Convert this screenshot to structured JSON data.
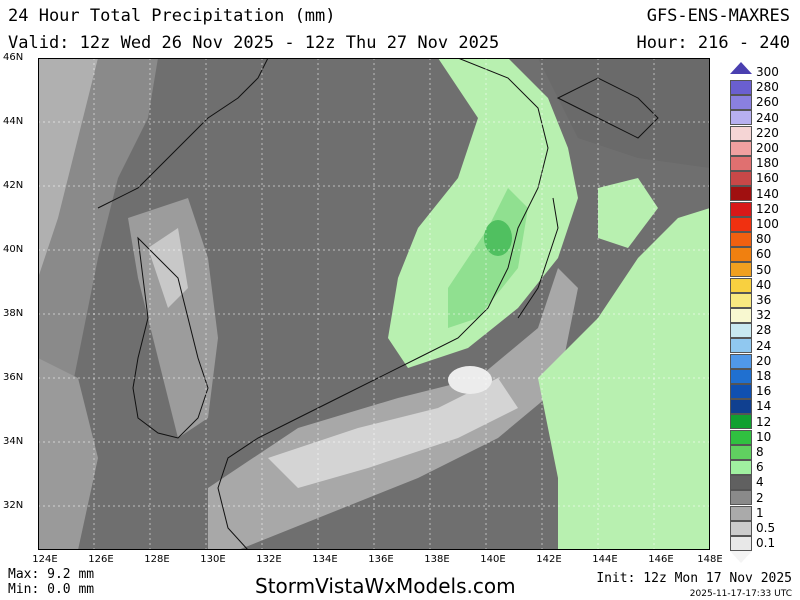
{
  "header": {
    "title": "24 Hour Total Precipitation (mm)",
    "valid": "Valid: 12z Wed 26 Nov 2025 - 12z Thu 27 Nov 2025",
    "model": "GFS-ENS-MAXRES",
    "hour": "Hour: 216 - 240"
  },
  "axes": {
    "lat_labels": [
      "46N",
      "44N",
      "42N",
      "40N",
      "38N",
      "36N",
      "34N",
      "32N"
    ],
    "lon_labels": [
      "124E",
      "126E",
      "128E",
      "130E",
      "132E",
      "134E",
      "136E",
      "138E",
      "140E",
      "142E",
      "144E",
      "146E",
      "148E"
    ]
  },
  "legend": {
    "labels": [
      "300",
      "280",
      "260",
      "240",
      "220",
      "200",
      "180",
      "160",
      "140",
      "120",
      "100",
      "80",
      "60",
      "50",
      "40",
      "36",
      "32",
      "28",
      "24",
      "20",
      "18",
      "16",
      "14",
      "12",
      "10",
      "8",
      "6",
      "4",
      "2",
      "1",
      "0.5",
      "0.1"
    ],
    "colors": [
      "#4a3fb0",
      "#6a5fd0",
      "#8a80e0",
      "#b7b0f0",
      "#f5d5d5",
      "#f0a0a0",
      "#e07070",
      "#c84848",
      "#a01010",
      "#d81818",
      "#f03010",
      "#f06010",
      "#f08010",
      "#f0a020",
      "#f8d040",
      "#f8e880",
      "#f8f8d0",
      "#c8e8f0",
      "#90c8f0",
      "#5098e8",
      "#2070d0",
      "#1050b0",
      "#104090",
      "#10a030",
      "#30c040",
      "#60d060",
      "#a0f0a0",
      "#606060",
      "#8a8a8a",
      "#aaaaaa",
      "#cccccc",
      "#e8e8e8"
    ]
  },
  "footer": {
    "max": "Max: 9.2 mm",
    "min": "Min: 0.0 mm",
    "site": "StormVistaWxModels.com",
    "init": "Init: 12z Mon 17 Nov 2025",
    "stamp": "2025-11-17-17:33 UTC"
  }
}
